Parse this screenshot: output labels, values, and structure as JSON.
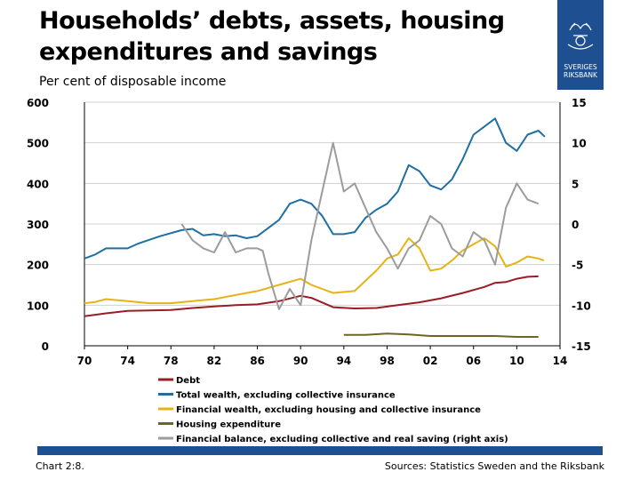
{
  "header": {
    "title": "Households’ debts, assets, housing expenditures and savings",
    "subtitle": "Per cent of disposable income"
  },
  "logo": {
    "text_line1": "SVERIGES",
    "text_line2": "RIKSBANK",
    "icon": "riksbank-crown-emblem"
  },
  "footer": {
    "chart_label": "Chart 2:8.",
    "sources": "Sources: Statistics Sweden and the Riksbank"
  },
  "colors": {
    "brand_blue": "#1d4f91"
  },
  "chart_data": {
    "type": "line",
    "title": "",
    "xlabel": "",
    "ylabel": "Per cent of disposable income",
    "xlim": [
      1970,
      2014
    ],
    "xticks": [
      "70",
      "74",
      "78",
      "82",
      "86",
      "90",
      "94",
      "98",
      "02",
      "06",
      "10",
      "14"
    ],
    "ylim": [
      0,
      600
    ],
    "yticks": [
      "0",
      "100",
      "200",
      "300",
      "400",
      "500",
      "600"
    ],
    "y2lim": [
      -15,
      15
    ],
    "y2ticks": [
      "-15",
      "-10",
      "-5",
      "0",
      "5",
      "10",
      "15"
    ],
    "grid": "horizontal",
    "legend_position": "bottom",
    "series": [
      {
        "name": "Debt",
        "color": "#9b1c24",
        "axis": "left",
        "points": [
          [
            1970,
            73
          ],
          [
            1972,
            80
          ],
          [
            1974,
            86
          ],
          [
            1976,
            87
          ],
          [
            1978,
            88
          ],
          [
            1980,
            93
          ],
          [
            1982,
            97
          ],
          [
            1984,
            100
          ],
          [
            1986,
            102
          ],
          [
            1988,
            110
          ],
          [
            1990,
            123
          ],
          [
            1991,
            118
          ],
          [
            1993,
            95
          ],
          [
            1995,
            92
          ],
          [
            1997,
            93
          ],
          [
            1999,
            100
          ],
          [
            2001,
            107
          ],
          [
            2003,
            117
          ],
          [
            2005,
            130
          ],
          [
            2007,
            145
          ],
          [
            2008,
            155
          ],
          [
            2009,
            157
          ],
          [
            2010,
            165
          ],
          [
            2011,
            170
          ],
          [
            2012,
            171
          ]
        ]
      },
      {
        "name": "Total wealth, excluding collective insurance",
        "color": "#1f6fa3",
        "axis": "left",
        "points": [
          [
            1970,
            215
          ],
          [
            1971,
            225
          ],
          [
            1972,
            240
          ],
          [
            1974,
            240
          ],
          [
            1975,
            252
          ],
          [
            1977,
            270
          ],
          [
            1979,
            285
          ],
          [
            1980,
            288
          ],
          [
            1981,
            272
          ],
          [
            1982,
            275
          ],
          [
            1983,
            270
          ],
          [
            1984,
            272
          ],
          [
            1985,
            265
          ],
          [
            1986,
            270
          ],
          [
            1987,
            290
          ],
          [
            1988,
            310
          ],
          [
            1989,
            350
          ],
          [
            1990,
            360
          ],
          [
            1991,
            350
          ],
          [
            1992,
            320
          ],
          [
            1993,
            275
          ],
          [
            1994,
            275
          ],
          [
            1995,
            280
          ],
          [
            1996,
            315
          ],
          [
            1997,
            335
          ],
          [
            1998,
            350
          ],
          [
            1999,
            380
          ],
          [
            2000,
            445
          ],
          [
            2001,
            430
          ],
          [
            2002,
            395
          ],
          [
            2003,
            385
          ],
          [
            2004,
            410
          ],
          [
            2005,
            460
          ],
          [
            2006,
            520
          ],
          [
            2007,
            540
          ],
          [
            2008,
            560
          ],
          [
            2009,
            500
          ],
          [
            2010,
            480
          ],
          [
            2011,
            520
          ],
          [
            2012,
            530
          ],
          [
            2012.6,
            515
          ]
        ]
      },
      {
        "name": "Financial wealth, excluding housing and collective insurance",
        "color": "#e5b414",
        "axis": "left",
        "points": [
          [
            1970,
            105
          ],
          [
            1971,
            108
          ],
          [
            1972,
            115
          ],
          [
            1974,
            110
          ],
          [
            1976,
            105
          ],
          [
            1978,
            105
          ],
          [
            1980,
            110
          ],
          [
            1982,
            115
          ],
          [
            1984,
            125
          ],
          [
            1986,
            135
          ],
          [
            1988,
            150
          ],
          [
            1990,
            165
          ],
          [
            1991,
            150
          ],
          [
            1993,
            130
          ],
          [
            1995,
            135
          ],
          [
            1996,
            160
          ],
          [
            1997,
            185
          ],
          [
            1998,
            215
          ],
          [
            1999,
            225
          ],
          [
            2000,
            265
          ],
          [
            2001,
            240
          ],
          [
            2002,
            185
          ],
          [
            2003,
            190
          ],
          [
            2004,
            210
          ],
          [
            2005,
            235
          ],
          [
            2006,
            250
          ],
          [
            2007,
            265
          ],
          [
            2008,
            245
          ],
          [
            2009,
            195
          ],
          [
            2010,
            205
          ],
          [
            2011,
            220
          ],
          [
            2012,
            215
          ],
          [
            2012.5,
            210
          ]
        ]
      },
      {
        "name": "Housing expenditure",
        "color": "#6b6625",
        "axis": "left",
        "points": [
          [
            1994,
            27
          ],
          [
            1996,
            27
          ],
          [
            1998,
            30
          ],
          [
            2000,
            28
          ],
          [
            2002,
            24
          ],
          [
            2004,
            24
          ],
          [
            2006,
            24
          ],
          [
            2008,
            24
          ],
          [
            2010,
            22
          ],
          [
            2012,
            22
          ]
        ]
      },
      {
        "name": "Financial balance, excluding collective and real saving (right axis)",
        "color": "#9c9c9c",
        "axis": "right",
        "points": [
          [
            1979,
            0
          ],
          [
            1980,
            -2
          ],
          [
            1981,
            -3
          ],
          [
            1982,
            -3.5
          ],
          [
            1983,
            -1
          ],
          [
            1984,
            -3.5
          ],
          [
            1985,
            -3
          ],
          [
            1986,
            -3
          ],
          [
            1986.5,
            -3.3
          ],
          [
            1987,
            -6
          ],
          [
            1988,
            -10.5
          ],
          [
            1989,
            -8
          ],
          [
            1990,
            -10
          ],
          [
            1991,
            -2
          ],
          [
            1992,
            4
          ],
          [
            1993,
            10
          ],
          [
            1994,
            4
          ],
          [
            1995,
            5
          ],
          [
            1996,
            2
          ],
          [
            1997,
            -1
          ],
          [
            1998,
            -3
          ],
          [
            1999,
            -5.5
          ],
          [
            2000,
            -3
          ],
          [
            2001,
            -2
          ],
          [
            2002,
            1
          ],
          [
            2003,
            0
          ],
          [
            2004,
            -3
          ],
          [
            2005,
            -4
          ],
          [
            2006,
            -1
          ],
          [
            2007,
            -2
          ],
          [
            2008,
            -5
          ],
          [
            2009,
            2
          ],
          [
            2010,
            5
          ],
          [
            2011,
            3
          ],
          [
            2012,
            2.5
          ]
        ]
      }
    ]
  }
}
